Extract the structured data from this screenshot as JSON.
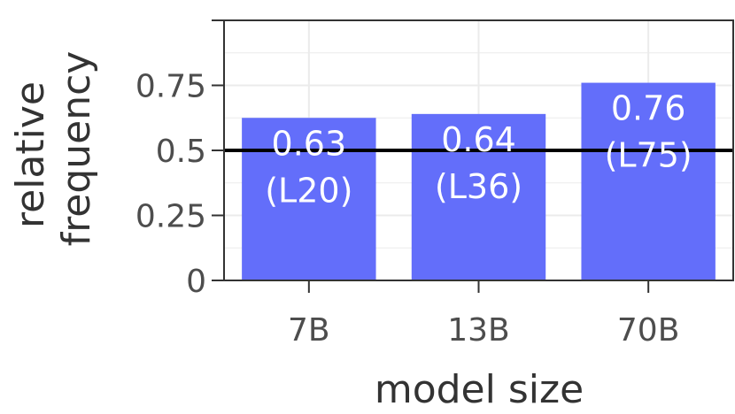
{
  "chart_data": {
    "type": "bar",
    "categories": [
      "7B",
      "13B",
      "70B"
    ],
    "values": [
      0.625,
      0.64,
      0.76
    ],
    "bar_labels": [
      [
        "0.63",
        "(L20)"
      ],
      [
        "0.64",
        "(L36)"
      ],
      [
        "0.76",
        "(L75)"
      ]
    ],
    "xlabel": "model size",
    "ylabel_lines": [
      "relative",
      "frequency"
    ],
    "ylim": [
      0,
      1
    ],
    "yticks": [
      0,
      0.25,
      0.5,
      0.75
    ],
    "ytick_labels": [
      "0",
      "0.25",
      "0.5",
      "0.75"
    ],
    "reference_line": 0.5,
    "grid": true,
    "colors": {
      "bar": "#636efa",
      "grid": "#ebebeb",
      "reference_line": "#000000",
      "axis": "#333333"
    }
  }
}
